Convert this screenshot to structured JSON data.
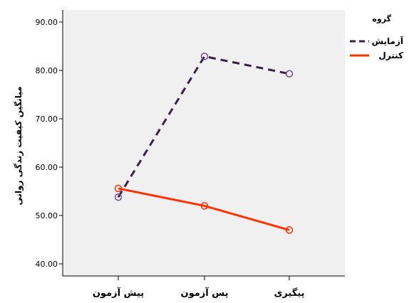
{
  "chart_data": {
    "type": "line",
    "categories": [
      "پیش آزمون",
      "پس آزمون",
      "پیگیری"
    ],
    "ylabel": "میانگین کیفیت زندگی روانی",
    "ylim": [
      37.5,
      92.5
    ],
    "yticks": [
      "40.00",
      "50.00",
      "60.00",
      "70.00",
      "80.00",
      "90.00"
    ],
    "ytick_values": [
      40,
      50,
      60,
      70,
      80,
      90
    ],
    "grid": false,
    "legend": {
      "title": "گروه",
      "position": "right"
    },
    "series": [
      {
        "name": "آزمایش",
        "values": [
          53.8,
          82.9,
          79.3
        ],
        "color": "#3a1f4a",
        "dash": "dashed"
      },
      {
        "name": "کنترل",
        "values": [
          55.6,
          52.0,
          47.0
        ],
        "color": "#ff3300",
        "dash": "solid"
      }
    ],
    "plot_background": "#f0f0f0"
  }
}
